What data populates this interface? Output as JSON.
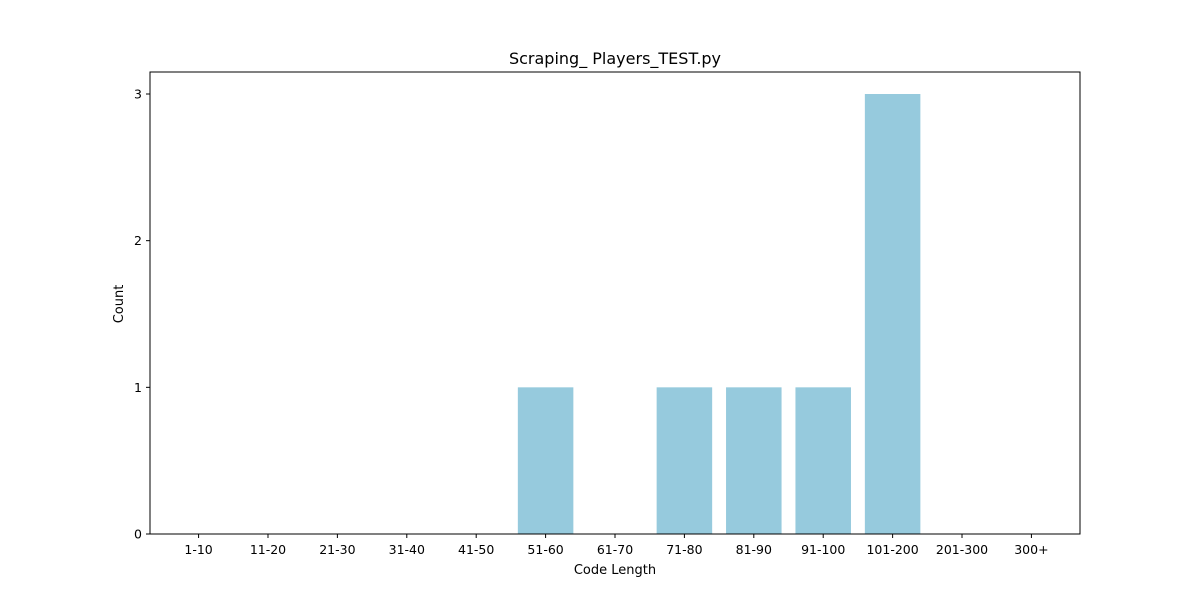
{
  "chart_data": {
    "type": "bar",
    "title": "Scraping_ Players_TEST.py",
    "xlabel": "Code Length",
    "ylabel": "Count",
    "categories": [
      "1-10",
      "11-20",
      "21-30",
      "31-40",
      "41-50",
      "51-60",
      "61-70",
      "71-80",
      "81-90",
      "91-100",
      "101-200",
      "201-300",
      "300+"
    ],
    "values": [
      0,
      0,
      0,
      0,
      0,
      1,
      0,
      1,
      1,
      1,
      3,
      0,
      0
    ],
    "yticks": [
      "0",
      "1",
      "2",
      "3"
    ],
    "ylim": [
      0,
      3.15
    ],
    "grid": false,
    "legend": "none",
    "bar_color": "#96cadd"
  }
}
